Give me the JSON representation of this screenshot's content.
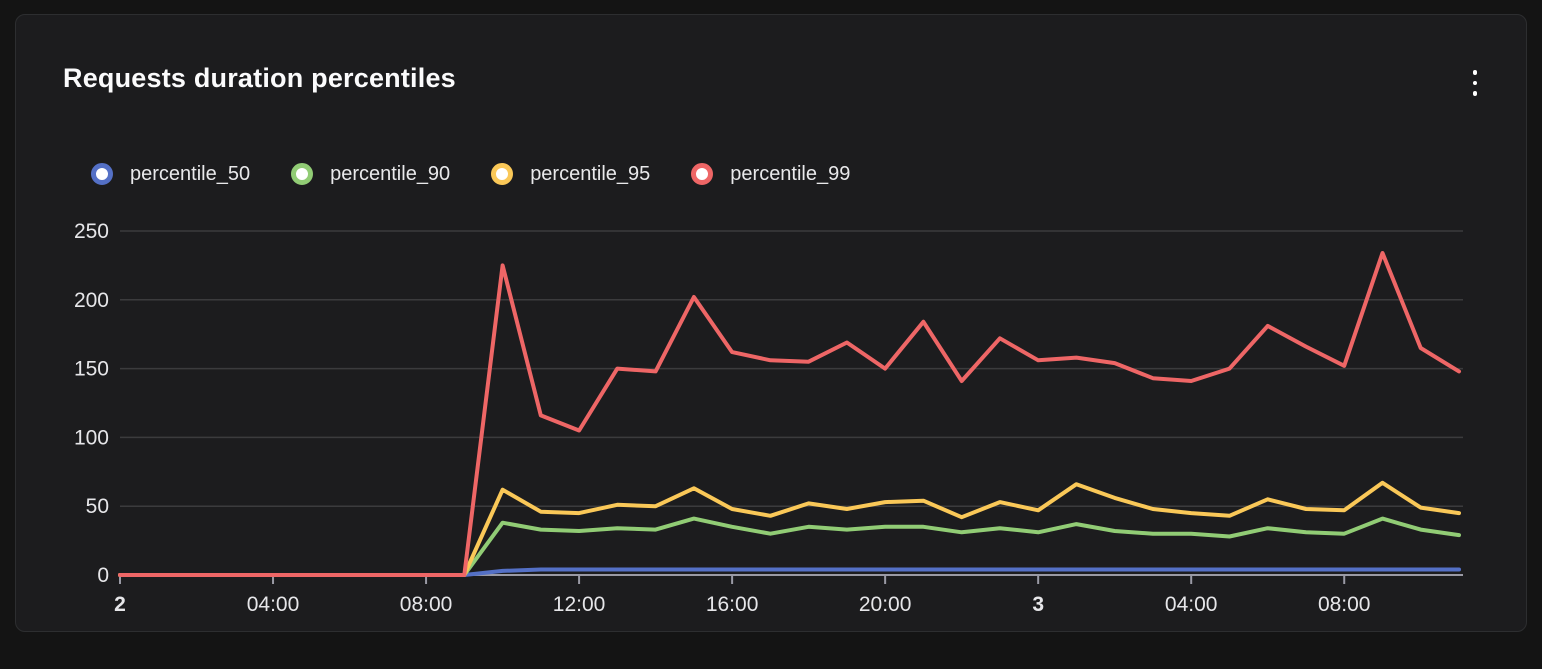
{
  "panel": {
    "title": "Requests duration percentiles",
    "menu_icon": "kebab-vertical-icon"
  },
  "colors": {
    "page_bg": "#141414",
    "panel_bg": "#1c1c1e",
    "panel_border": "#2d2e30",
    "grid": "#3b3b3d",
    "axis": "#9a9aa5",
    "tick_label": "#e6e6e9",
    "p50": "#5470c6",
    "p90": "#91cc75",
    "p95": "#fac858",
    "p99": "#ee6666"
  },
  "chart_data": {
    "type": "line",
    "title": "Requests duration percentiles",
    "xlabel": "",
    "ylabel": "",
    "x_unit": "hours (day 2 00:00 through day 3 11:00)",
    "x_hours": [
      0,
      1,
      2,
      3,
      4,
      5,
      6,
      7,
      8,
      9,
      10,
      11,
      12,
      13,
      14,
      15,
      16,
      17,
      18,
      19,
      20,
      21,
      22,
      23,
      24,
      25,
      26,
      27,
      28,
      29,
      30,
      31,
      32,
      33,
      34,
      35
    ],
    "series": [
      {
        "name": "percentile_50",
        "color_key": "p50",
        "values": [
          0,
          0,
          0,
          0,
          0,
          0,
          0,
          0,
          0,
          0,
          3,
          4,
          4,
          4,
          4,
          4,
          4,
          4,
          4,
          4,
          4,
          4,
          4,
          4,
          4,
          4,
          4,
          4,
          4,
          4,
          4,
          4,
          4,
          4,
          4,
          4
        ]
      },
      {
        "name": "percentile_90",
        "color_key": "p90",
        "values": [
          0,
          0,
          0,
          0,
          0,
          0,
          0,
          0,
          0,
          0,
          38,
          33,
          32,
          34,
          33,
          41,
          35,
          30,
          35,
          33,
          35,
          35,
          31,
          34,
          31,
          37,
          32,
          30,
          30,
          28,
          34,
          31,
          30,
          41,
          33,
          29
        ]
      },
      {
        "name": "percentile_95",
        "color_key": "p95",
        "values": [
          0,
          0,
          0,
          0,
          0,
          0,
          0,
          0,
          0,
          0,
          62,
          46,
          45,
          51,
          50,
          63,
          48,
          43,
          52,
          48,
          53,
          54,
          42,
          53,
          47,
          66,
          56,
          48,
          45,
          43,
          55,
          48,
          47,
          67,
          49,
          45
        ]
      },
      {
        "name": "percentile_99",
        "color_key": "p99",
        "values": [
          0,
          0,
          0,
          0,
          0,
          0,
          0,
          0,
          0,
          0,
          225,
          116,
          105,
          150,
          148,
          202,
          162,
          156,
          155,
          169,
          150,
          184,
          141,
          172,
          156,
          158,
          154,
          143,
          141,
          150,
          181,
          166,
          152,
          234,
          165,
          148
        ]
      }
    ],
    "y_ticks": [
      0,
      50,
      100,
      150,
      200,
      250
    ],
    "ylim": [
      0,
      250
    ],
    "x_tick_hours": [
      0,
      4,
      8,
      12,
      16,
      20,
      24,
      28,
      32
    ],
    "x_tick_labels": [
      "2",
      "04:00",
      "08:00",
      "12:00",
      "16:00",
      "20:00",
      "3",
      "04:00",
      "08:00"
    ],
    "x_tick_bold": [
      true,
      false,
      false,
      false,
      false,
      false,
      true,
      false,
      false
    ],
    "grid": true,
    "legend_position": "top-left"
  }
}
